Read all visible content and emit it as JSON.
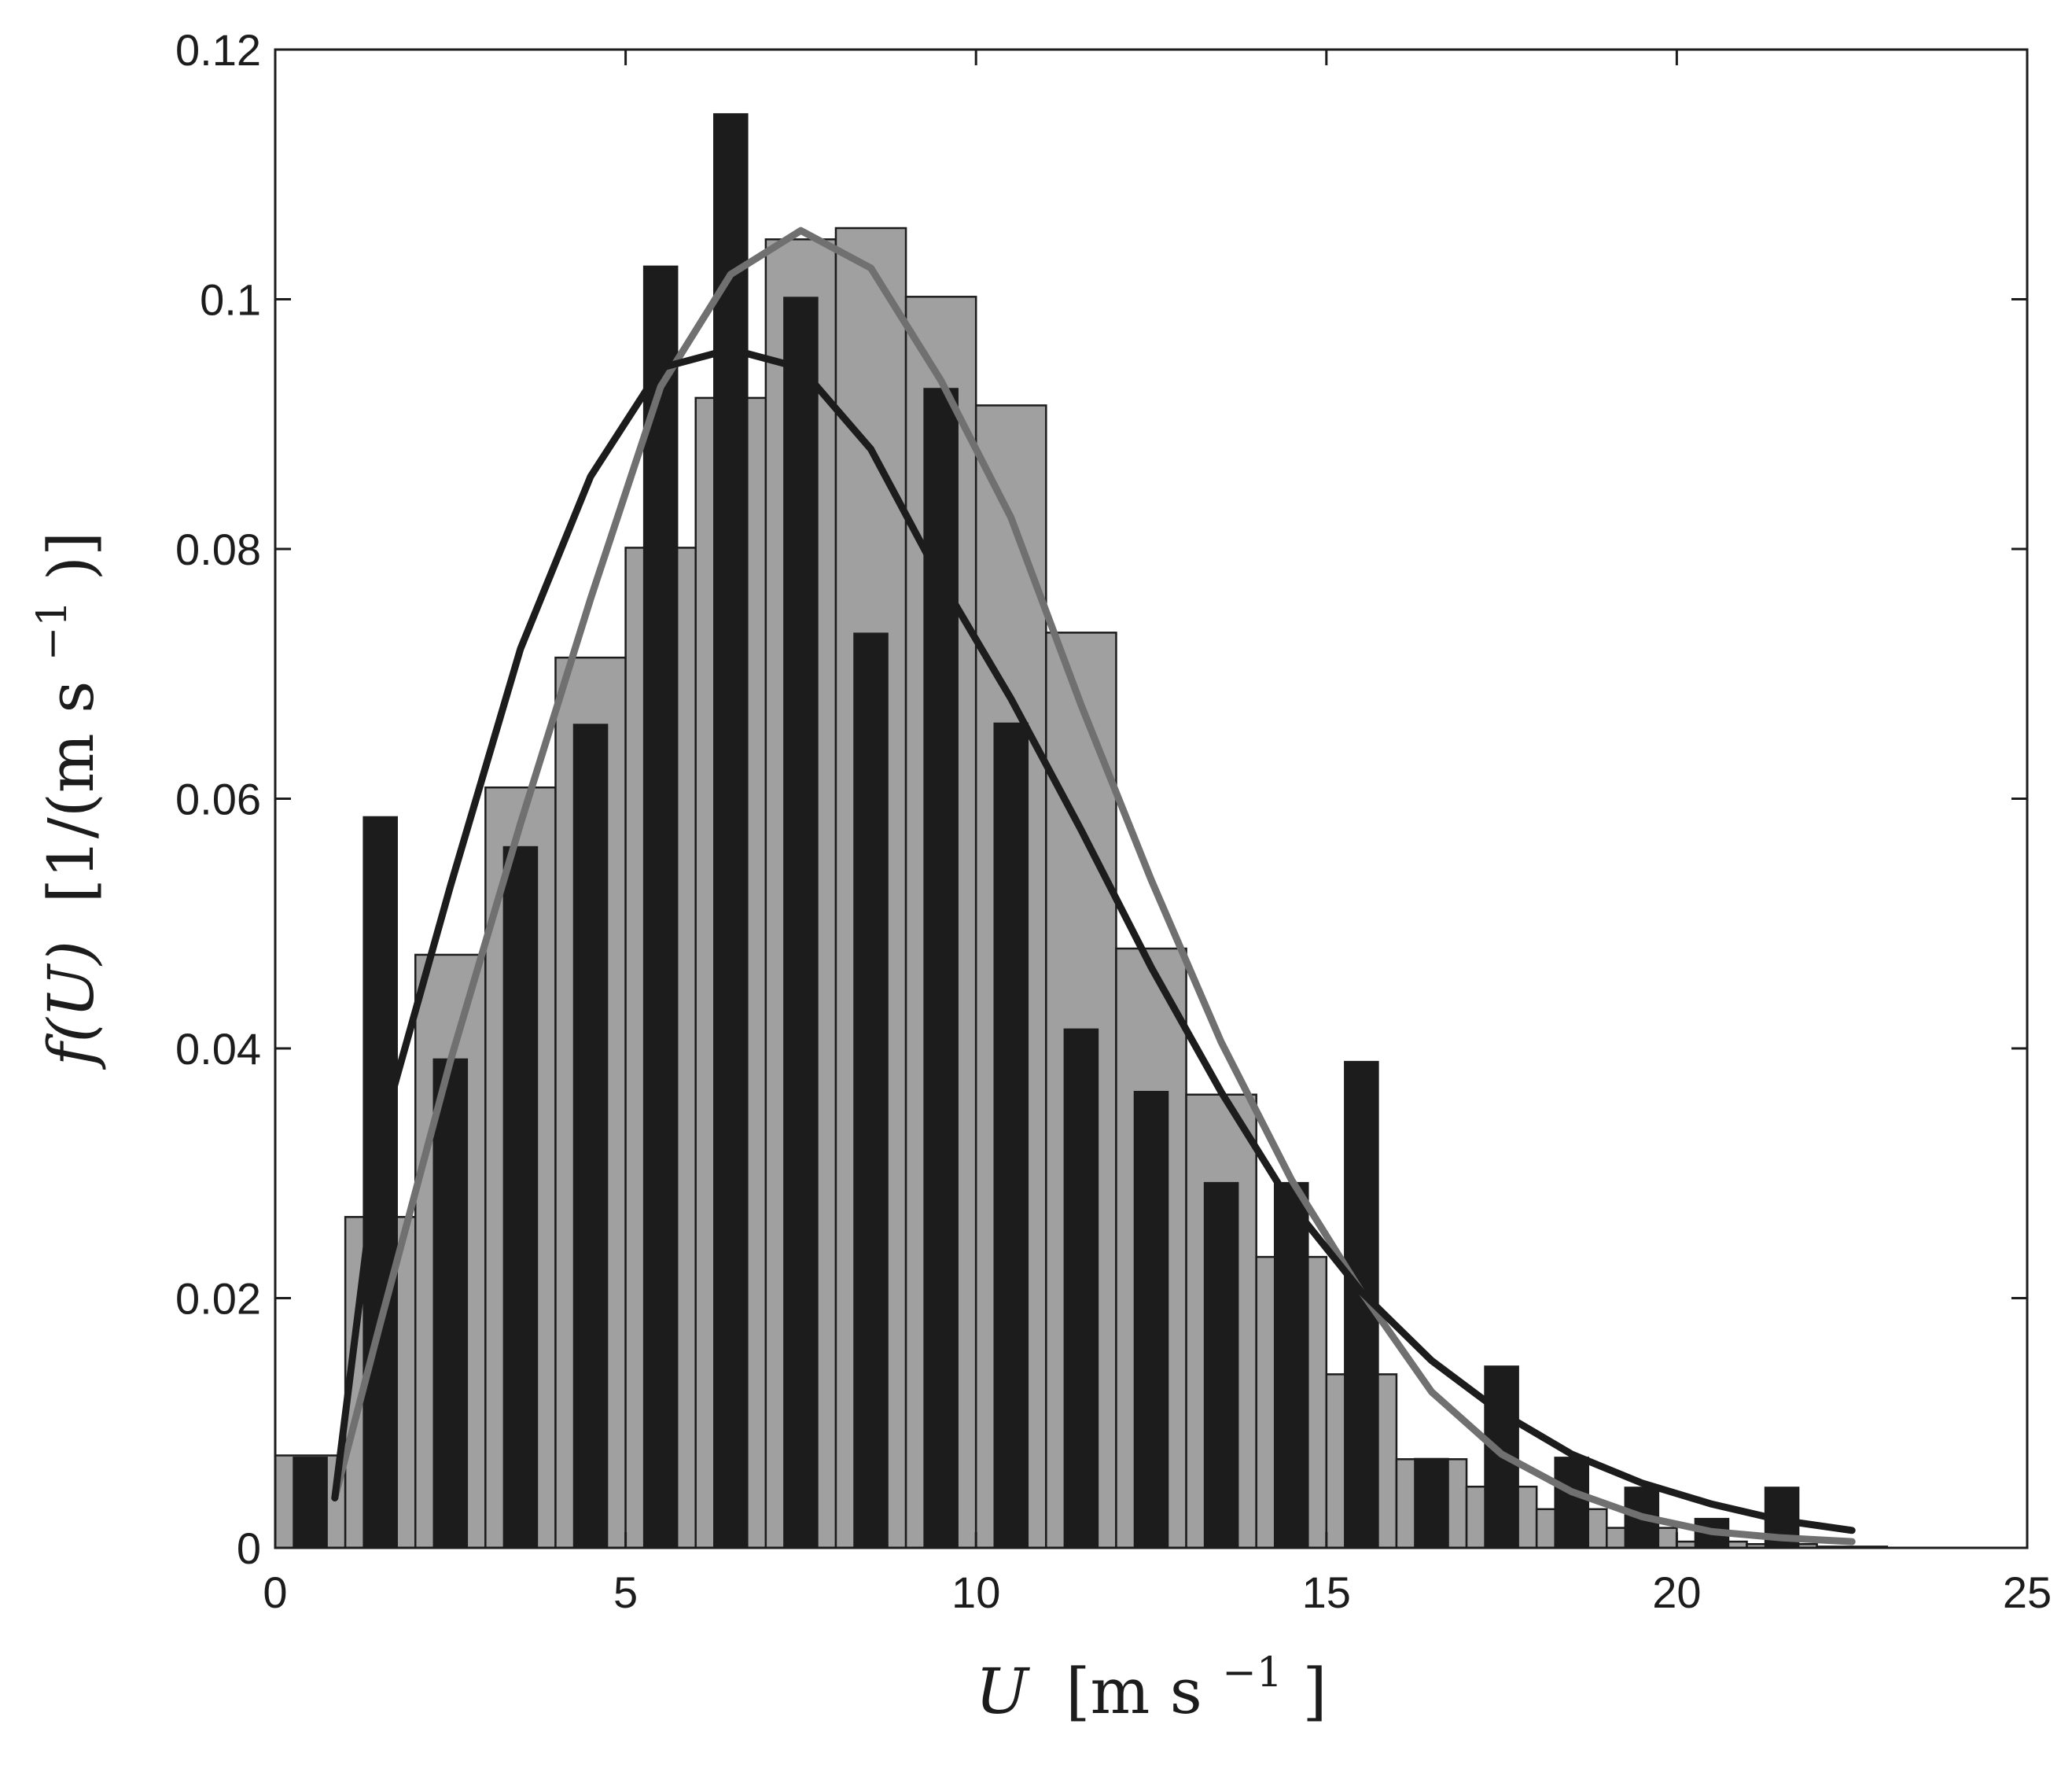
{
  "chart_data": {
    "type": "bar",
    "xlabel_symbol": "U",
    "xlabel_units": "[m s",
    "xlabel_exp": "−1",
    "xlabel_close": "]",
    "ylabel_symbol": "f(U)",
    "ylabel_units": "[1/(m s",
    "ylabel_exp": "−1",
    "ylabel_close": ")]",
    "xlim": [
      0,
      25
    ],
    "ylim": [
      0,
      0.12
    ],
    "xticks": [
      0,
      5,
      10,
      15,
      20,
      25
    ],
    "xtick_labels": [
      "0",
      "5",
      "10",
      "15",
      "20",
      "25"
    ],
    "yticks": [
      0,
      0.02,
      0.04,
      0.06,
      0.08,
      0.1,
      0.12
    ],
    "ytick_labels": [
      "0",
      "0.02",
      "0.04",
      "0.06",
      "0.08",
      "0.1",
      "0.12"
    ],
    "grid": false,
    "colors": {
      "gray_bars": "#a0a0a0",
      "gray_bar_edge": "#1c1c1c",
      "black_bars": "#1c1c1c",
      "gray_curve": "#707070",
      "black_curve": "#1c1c1c",
      "axes": "#1c1c1c"
    },
    "series": [
      {
        "kind": "histogram-wide",
        "color": "#a0a0a0",
        "bin_width": 1,
        "x": [
          0.5,
          1.5,
          2.5,
          3.5,
          4.5,
          5.5,
          6.5,
          7.5,
          8.5,
          9.5,
          10.5,
          11.5,
          12.5,
          13.5,
          14.5,
          15.5,
          16.5,
          17.5,
          18.5,
          19.5,
          20.5,
          21.5,
          22.5
        ],
        "values": [
          0.0074,
          0.0265,
          0.0475,
          0.0609,
          0.0713,
          0.0801,
          0.0921,
          0.1048,
          0.1057,
          0.1002,
          0.0915,
          0.0733,
          0.048,
          0.0363,
          0.0233,
          0.0139,
          0.0071,
          0.0049,
          0.0031,
          0.0016,
          0.0005,
          0.0003,
          0.0001
        ]
      },
      {
        "kind": "histogram-narrow",
        "color": "#1c1c1c",
        "bin_width": 0.5,
        "x": [
          0.5,
          1.5,
          2.5,
          3.5,
          4.5,
          5.5,
          6.5,
          7.5,
          8.5,
          9.5,
          10.5,
          11.5,
          12.5,
          13.5,
          14.5,
          15.5,
          16.5,
          17.5,
          18.5,
          19.5,
          20.5,
          21.5
        ],
        "values": [
          0.0073,
          0.0586,
          0.0392,
          0.0562,
          0.066,
          0.1027,
          0.1149,
          0.1002,
          0.0733,
          0.0929,
          0.0661,
          0.0416,
          0.0366,
          0.0293,
          0.0293,
          0.039,
          0.0072,
          0.0146,
          0.0073,
          0.0049,
          0.0024,
          0.0049
        ]
      },
      {
        "kind": "curve",
        "color": "#707070",
        "x": [
          0.85,
          1.5,
          2.5,
          3.5,
          4.5,
          5.5,
          6.5,
          7.5,
          8.5,
          9.5,
          10.5,
          11.5,
          12.5,
          13.5,
          14.5,
          15.5,
          16.5,
          17.5,
          18.5,
          19.5,
          20.5,
          21.5,
          22.5
        ],
        "values": [
          0.004,
          0.018,
          0.039,
          0.058,
          0.076,
          0.093,
          0.102,
          0.1055,
          0.1025,
          0.0935,
          0.0825,
          0.0675,
          0.0535,
          0.0405,
          0.0295,
          0.0205,
          0.0125,
          0.0075,
          0.0045,
          0.0025,
          0.0013,
          0.0008,
          0.0005
        ]
      },
      {
        "kind": "curve",
        "color": "#1c1c1c",
        "x": [
          0.85,
          1.5,
          2.5,
          3.5,
          4.5,
          5.5,
          6.5,
          7.5,
          8.5,
          9.5,
          10.5,
          11.5,
          12.5,
          13.5,
          14.5,
          15.5,
          16.5,
          17.5,
          18.5,
          19.5,
          20.5,
          21.5,
          22.5
        ],
        "values": [
          0.004,
          0.033,
          0.053,
          0.072,
          0.0858,
          0.0945,
          0.096,
          0.0945,
          0.088,
          0.0775,
          0.068,
          0.0575,
          0.0465,
          0.0365,
          0.0275,
          0.0205,
          0.015,
          0.0108,
          0.0075,
          0.0052,
          0.0035,
          0.0022,
          0.0014
        ]
      }
    ]
  }
}
